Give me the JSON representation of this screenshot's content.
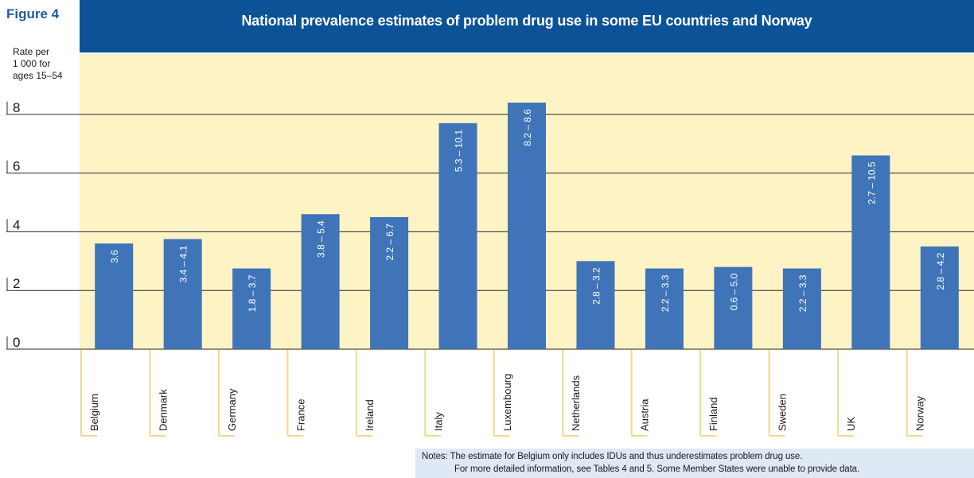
{
  "figure_label": "Figure 4",
  "notes": [
    "Notes: The estimate for Belgium only includes IDUs and thus underestimates problem drug use.",
    "For more detailed information, see Tables 4 and 5. Some Member States were unable to provide data."
  ],
  "colors": {
    "title_bar": "#0c5297",
    "plot_background": "#fdf3c4",
    "bar": "#3f74b8",
    "category_line": "#f1d98a",
    "notes_background": "#dfe8f5"
  },
  "chart_data": {
    "type": "bar",
    "title": "National prevalence estimates of problem drug use in some EU countries and Norway",
    "ylabel": "Rate per\n1 000 for\nages 15–54",
    "ylim": [
      0,
      8
    ],
    "yticks": [
      "0",
      "2",
      "4",
      "6",
      "8"
    ],
    "grid": true,
    "categories": [
      "Belgium",
      "Denmark",
      "Germany",
      "France",
      "Ireland",
      "Italy",
      "Luxembourg",
      "Netherlands",
      "Austria",
      "Finland",
      "Sweden",
      "UK",
      "Norway"
    ],
    "values": [
      3.6,
      3.75,
      2.75,
      4.6,
      4.5,
      7.7,
      8.4,
      3.0,
      2.75,
      2.8,
      2.75,
      6.6,
      3.5
    ],
    "data_labels": [
      "3.6",
      "3.4 – 4.1",
      "1.8 – 3.7",
      "3.8 – 5.4",
      "2.2 – 6.7",
      "5.3 – 10.1",
      "8.2 – 8.6",
      "2.8 – 3.2",
      "2.2 – 3.3",
      "0.6 – 5.0",
      "2.2 – 3.3",
      "2.7 – 10.5",
      "2.8 – 4.2"
    ]
  }
}
